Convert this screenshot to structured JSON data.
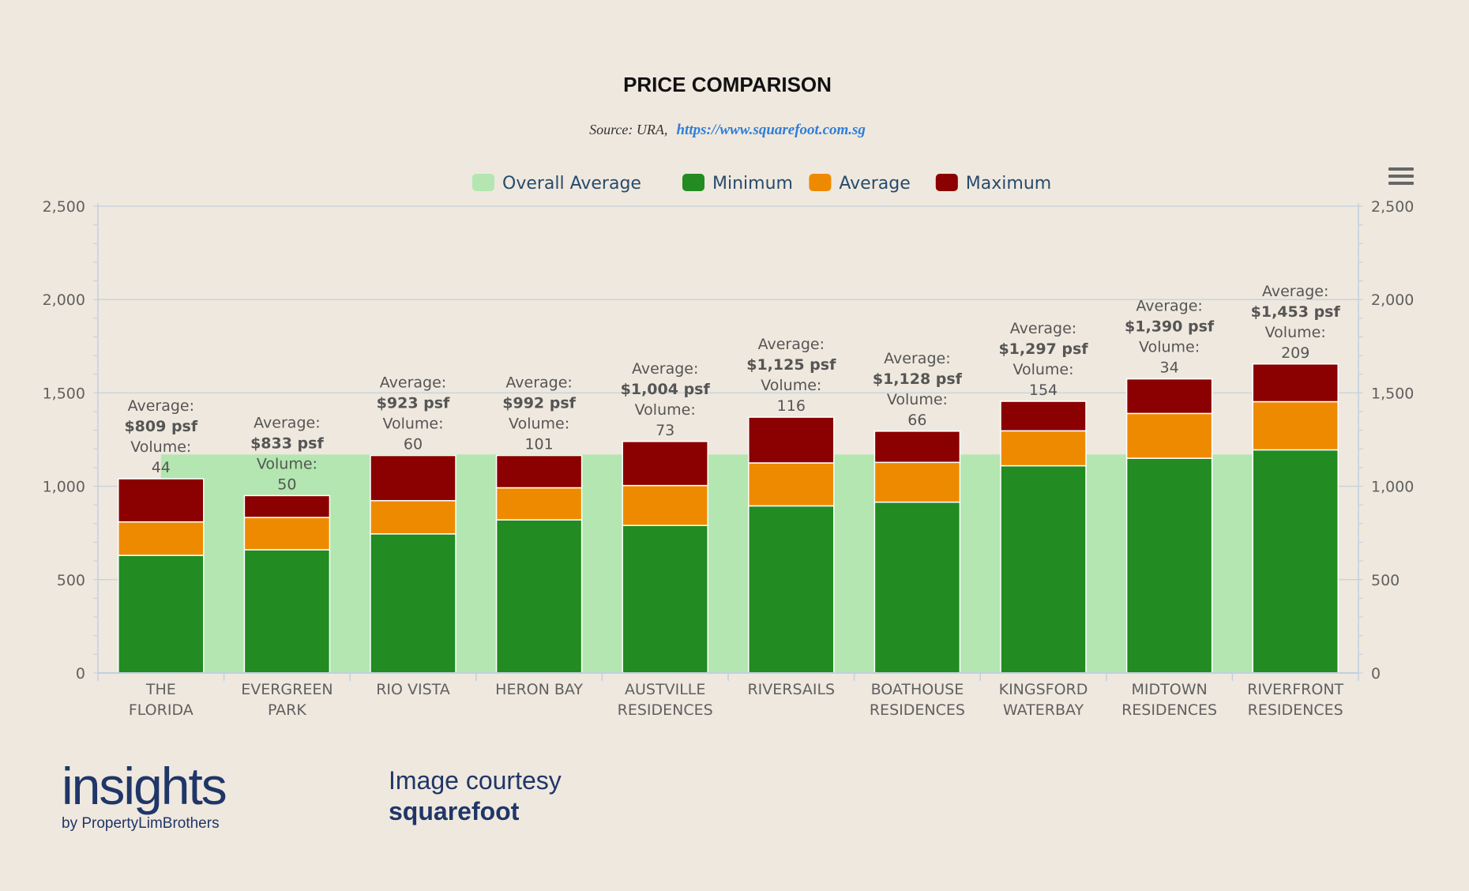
{
  "chart_data": {
    "type": "bar",
    "stacked": true,
    "title": "PRICE COMPARISON",
    "subtitle_prefix": "Source: URA,",
    "subtitle_link": "https://www.squarefoot.com.sg",
    "ylim": [
      0,
      2500
    ],
    "yticks": [
      "0",
      "500",
      "1,000",
      "1,500",
      "2,000",
      "2,500"
    ],
    "ytick_values": [
      0,
      500,
      1000,
      1500,
      2000,
      2500
    ],
    "legend": [
      {
        "name": "Overall Average",
        "color": "#b3e6b0"
      },
      {
        "name": "Minimum",
        "color": "#228b22"
      },
      {
        "name": "Average",
        "color": "#ee8a00"
      },
      {
        "name": "Maximum",
        "color": "#8b0000"
      }
    ],
    "overall_average": 1170,
    "categories": [
      [
        "THE",
        "FLORIDA"
      ],
      [
        "EVERGREEN",
        "PARK"
      ],
      [
        "RIO VISTA"
      ],
      [
        "HERON BAY"
      ],
      [
        "AUSTVILLE",
        "RESIDENCES"
      ],
      [
        "RIVERSAILS"
      ],
      [
        "BOATHOUSE",
        "RESIDENCES"
      ],
      [
        "KINGSFORD",
        "WATERBAY"
      ],
      [
        "MIDTOWN",
        "RESIDENCES"
      ],
      [
        "RIVERFRONT",
        "RESIDENCES"
      ]
    ],
    "minimum": [
      630,
      660,
      745,
      820,
      790,
      895,
      915,
      1110,
      1150,
      1195
    ],
    "average": [
      809,
      833,
      923,
      992,
      1004,
      1125,
      1128,
      1297,
      1390,
      1453
    ],
    "maximum": [
      1040,
      950,
      1165,
      1165,
      1240,
      1370,
      1295,
      1455,
      1575,
      1655
    ],
    "labels": [
      {
        "avg_label": "Average:",
        "psf": "$809 psf",
        "vol_label": "Volume:",
        "volume": "44"
      },
      {
        "avg_label": "Average:",
        "psf": "$833 psf",
        "vol_label": "Volume:",
        "volume": "50"
      },
      {
        "avg_label": "Average:",
        "psf": "$923 psf",
        "vol_label": "Volume:",
        "volume": "60"
      },
      {
        "avg_label": "Average:",
        "psf": "$992 psf",
        "vol_label": "Volume:",
        "volume": "101"
      },
      {
        "avg_label": "Average:",
        "psf": "$1,004 psf",
        "vol_label": "Volume:",
        "volume": "73"
      },
      {
        "avg_label": "Average:",
        "psf": "$1,125 psf",
        "vol_label": "Volume:",
        "volume": "116"
      },
      {
        "avg_label": "Average:",
        "psf": "$1,128 psf",
        "vol_label": "Volume:",
        "volume": "66"
      },
      {
        "avg_label": "Average:",
        "psf": "$1,297 psf",
        "vol_label": "Volume:",
        "volume": "154"
      },
      {
        "avg_label": "Average:",
        "psf": "$1,390 psf",
        "vol_label": "Volume:",
        "volume": "34"
      },
      {
        "avg_label": "Average:",
        "psf": "$1,453 psf",
        "vol_label": "Volume:",
        "volume": "209"
      }
    ],
    "grid": true,
    "legend_position": "top-center"
  },
  "branding": {
    "logo_main": "insights",
    "logo_sub": "by PropertyLimBrothers",
    "courtesy_line1": "Image courtesy",
    "courtesy_line2": "squarefoot"
  },
  "icons": {
    "menu": "hamburger-menu-icon"
  }
}
